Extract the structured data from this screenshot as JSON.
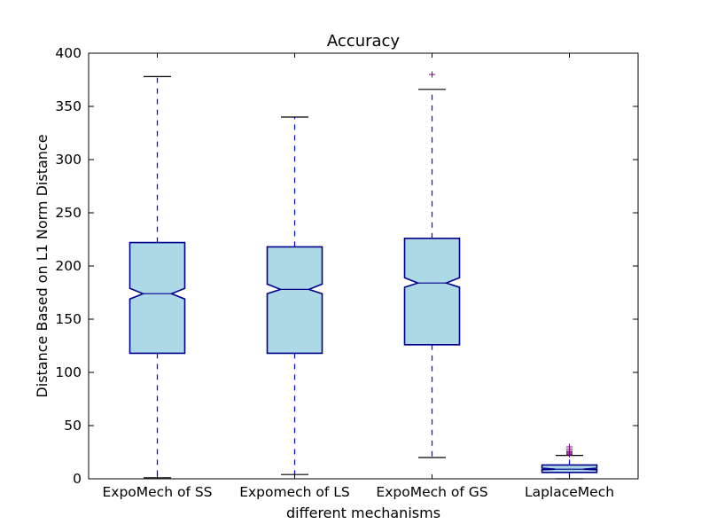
{
  "chart_data": {
    "type": "boxplot",
    "title": "Accuracy",
    "xlabel": "different mechanisms",
    "ylabel": "Distance Based on L1 Norm Distance",
    "ylim": [
      0,
      400
    ],
    "yticks": [
      0,
      50,
      100,
      150,
      200,
      250,
      300,
      350,
      400
    ],
    "categories": [
      "ExpoMech of SS",
      "Expomech of LS",
      "ExpoMech of GS",
      "LaplaceMech"
    ],
    "notched": true,
    "grid": false,
    "colors": {
      "box_fill": "#add8e6",
      "box_edge": "#00008b",
      "whisker": "#0000ff",
      "cap": "#000000",
      "median": "#00008b",
      "flier": "#800080"
    },
    "boxes": [
      {
        "label": "ExpoMech of SS",
        "whislo": 1,
        "q1": 118,
        "med": 174,
        "q3": 222,
        "whishi": 378,
        "notch_lo": 169,
        "notch_hi": 179,
        "fliers": []
      },
      {
        "label": "Expomech of LS",
        "whislo": 4,
        "q1": 118,
        "med": 178,
        "q3": 218,
        "whishi": 340,
        "notch_lo": 174,
        "notch_hi": 183,
        "fliers": []
      },
      {
        "label": "ExpoMech of GS",
        "whislo": 20,
        "q1": 126,
        "med": 184,
        "q3": 226,
        "whishi": 366,
        "notch_lo": 180,
        "notch_hi": 189,
        "fliers": [
          380
        ]
      },
      {
        "label": "LaplaceMech",
        "whislo": 0,
        "q1": 6,
        "med": 9,
        "q3": 13,
        "whishi": 22,
        "notch_lo": 8.5,
        "notch_hi": 10,
        "fliers": [
          23,
          24,
          25,
          26,
          28,
          30
        ]
      }
    ]
  }
}
